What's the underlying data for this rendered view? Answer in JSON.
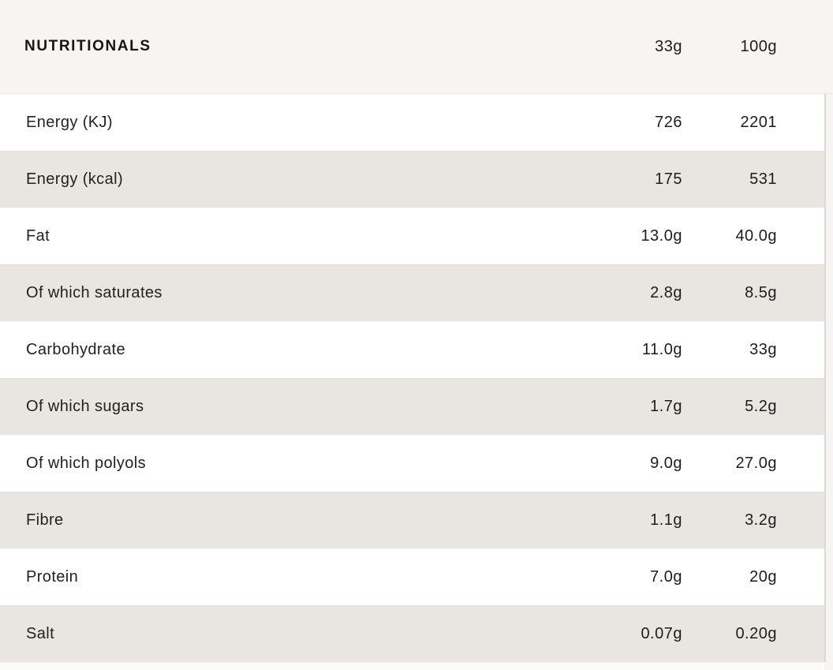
{
  "page": {
    "background_color": "#f6f5f3",
    "row_color": "#ffffff",
    "row_alt_color": "#e9e6e1",
    "text_color": "#1d1d1b"
  },
  "table": {
    "title": "NUTRITIONALS",
    "columns": [
      "33g",
      "100g"
    ],
    "rows": [
      {
        "label": "Energy (KJ)",
        "per_33g": "726",
        "per_100g": "2201"
      },
      {
        "label": "Energy (kcal)",
        "per_33g": "175",
        "per_100g": "531"
      },
      {
        "label": "Fat",
        "per_33g": "13.0g",
        "per_100g": "40.0g"
      },
      {
        "label": "Of which saturates",
        "per_33g": "2.8g",
        "per_100g": "8.5g"
      },
      {
        "label": "Carbohydrate",
        "per_33g": "11.0g",
        "per_100g": "33g"
      },
      {
        "label": "Of which sugars",
        "per_33g": "1.7g",
        "per_100g": "5.2g"
      },
      {
        "label": "Of which polyols",
        "per_33g": "9.0g",
        "per_100g": "27.0g"
      },
      {
        "label": "Fibre",
        "per_33g": "1.1g",
        "per_100g": "3.2g"
      },
      {
        "label": "Protein",
        "per_33g": "7.0g",
        "per_100g": "20g"
      },
      {
        "label": "Salt",
        "per_33g": "0.07g",
        "per_100g": "0.20g"
      }
    ]
  }
}
